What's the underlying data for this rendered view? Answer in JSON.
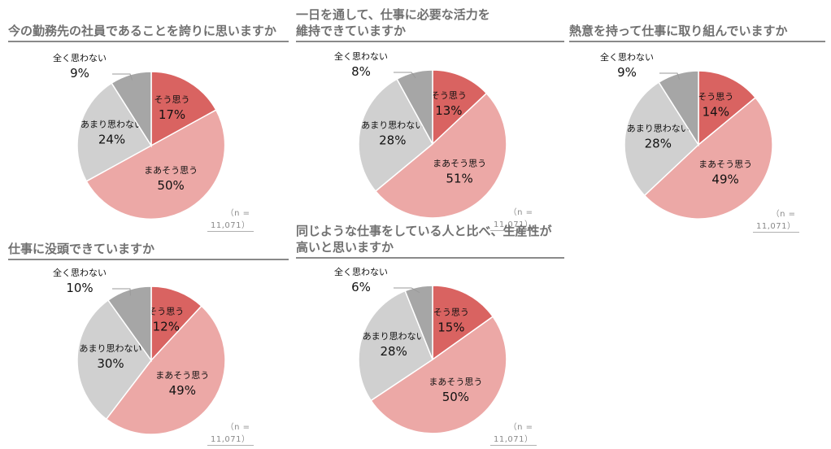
{
  "colors": {
    "そう思う": "#d96361",
    "まあそう思う": "#eca8a6",
    "あまり思わない": "#d0d0d0",
    "全く思わない": "#a6a6a6",
    "title": "#707070",
    "note": "#8a8a8a"
  },
  "chart_data": [
    {
      "type": "pie",
      "title": "今の勤務先の社員であることを誇りに思いますか",
      "categories": [
        "そう思う",
        "まあそう思う",
        "あまり思わない",
        "全く思わない"
      ],
      "values": [
        17,
        50,
        24,
        9
      ],
      "labels": [
        "17%",
        "50%",
        "24%",
        "9%"
      ],
      "note": "（n = 11,071）"
    },
    {
      "type": "pie",
      "title": "一日を通して、仕事に必要な活力を\n維持できていますか",
      "categories": [
        "そう思う",
        "まあそう思う",
        "あまり思わない",
        "全く思わない"
      ],
      "values": [
        13,
        51,
        28,
        8
      ],
      "labels": [
        "13%",
        "51%",
        "28%",
        "8%"
      ],
      "note": "（n = 11,071）"
    },
    {
      "type": "pie",
      "title": "熱意を持って仕事に取り組んでいますか",
      "categories": [
        "そう思う",
        "まあそう思う",
        "あまり思わない",
        "全く思わない"
      ],
      "values": [
        14,
        49,
        28,
        9
      ],
      "labels": [
        "14%",
        "49%",
        "28%",
        "9%"
      ],
      "note": "（n = 11,071）"
    },
    {
      "type": "pie",
      "title": "仕事に没頭できていますか",
      "categories": [
        "そう思う",
        "まあそう思う",
        "あまり思わない",
        "全く思わない"
      ],
      "values": [
        12,
        49,
        30,
        10
      ],
      "labels": [
        "12%",
        "49%",
        "30%",
        "10%"
      ],
      "note": "（n = 11,071）"
    },
    {
      "type": "pie",
      "title": "同じような仕事をしている人と比べ、生産性が\n高いと思いますか",
      "categories": [
        "そう思う",
        "まあそう思う",
        "あまり思わない",
        "全く思わない"
      ],
      "values": [
        15,
        50,
        28,
        6
      ],
      "labels": [
        "15%",
        "50%",
        "28%",
        "6%"
      ],
      "note": "（n = 11,071）"
    }
  ]
}
